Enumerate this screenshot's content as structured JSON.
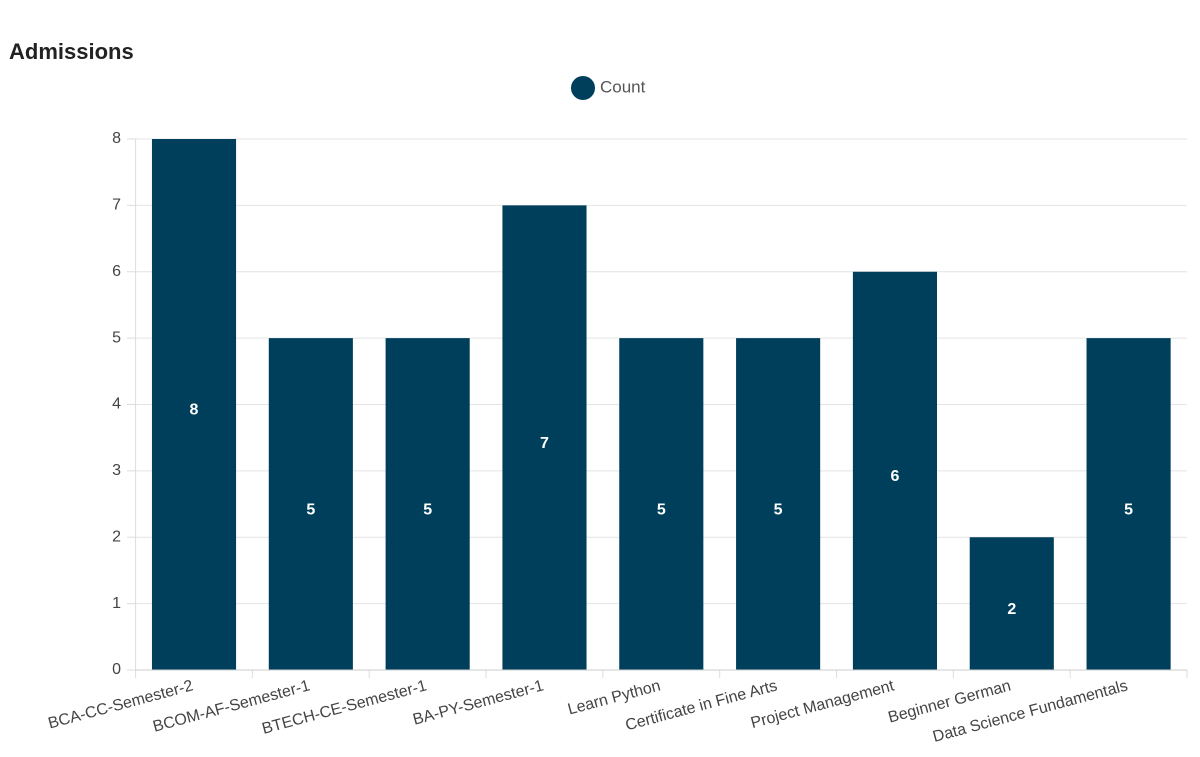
{
  "chart_data": {
    "type": "bar",
    "title": "Admissions",
    "categories": [
      "BCA-CC-Semester-2",
      "BCOM-AF-Semester-1",
      "BTECH-CE-Semester-1",
      "BA-PY-Semester-1",
      "Learn Python",
      "Certificate in Fine Arts",
      "Project Management",
      "Beginner German",
      "Data Science Fundamentals"
    ],
    "series": [
      {
        "name": "Count",
        "color": "#003f5c",
        "values": [
          8,
          5,
          5,
          7,
          5,
          5,
          6,
          2,
          5
        ]
      }
    ],
    "ylim": [
      0,
      8
    ],
    "yticks": [
      0,
      1,
      2,
      3,
      4,
      5,
      6,
      7,
      8
    ],
    "grid": true,
    "legend": "top"
  }
}
